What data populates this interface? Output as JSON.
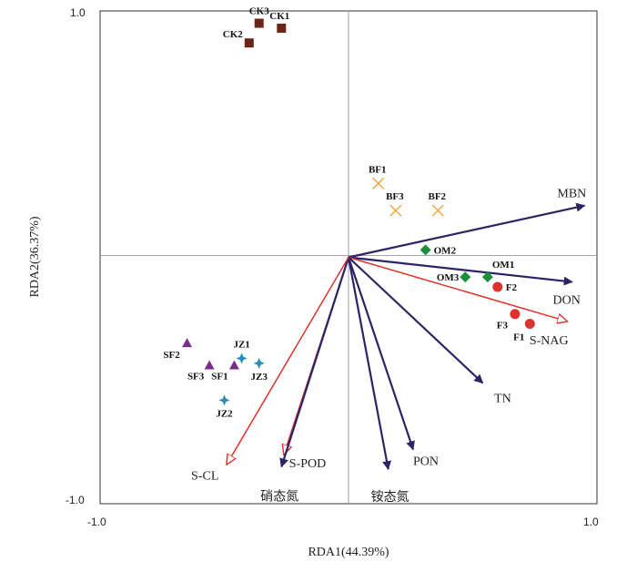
{
  "chart_data": {
    "type": "scatter",
    "xlabel": "RDA1(44.39%)",
    "ylabel": "RDA2(36.37%)",
    "xlim": [
      -1.0,
      1.0
    ],
    "ylim": [
      -1.0,
      1.0
    ],
    "x_ticks": [
      "-1.0",
      "1.0"
    ],
    "y_ticks": [
      "1.0",
      "-1.0"
    ],
    "reference_lines": "x=0, y=0",
    "colors": {
      "arrow_dark": "#2d2466",
      "arrow_red": "#e0322c",
      "CK": "#6b2418",
      "BF": "#f2a33a",
      "OM": "#1a8f3c",
      "F": "#e0322c",
      "SF": "#7b2d8e",
      "JZ": "#2a8fb8"
    },
    "vectors": [
      {
        "label": "MBN",
        "x": 0.95,
        "y": 0.21,
        "color": "dark"
      },
      {
        "label": "DON",
        "x": 0.9,
        "y": -0.1,
        "color": "dark"
      },
      {
        "label": "S-NAG",
        "x": 0.88,
        "y": -0.26,
        "color": "red"
      },
      {
        "label": "TN",
        "x": 0.54,
        "y": -0.51,
        "color": "dark"
      },
      {
        "label": "PON",
        "x": 0.26,
        "y": -0.78,
        "color": "dark"
      },
      {
        "label": "铵态氮",
        "x": 0.16,
        "y": -0.86,
        "color": "dark"
      },
      {
        "label": "S-POD",
        "x": -0.26,
        "y": -0.8,
        "color": "red"
      },
      {
        "label": "硝态氮",
        "x": -0.27,
        "y": -0.85,
        "color": "dark"
      },
      {
        "label": "S-CL",
        "x": -0.49,
        "y": -0.84,
        "color": "red"
      }
    ],
    "samples": [
      {
        "label": "CK1",
        "group": "CK",
        "marker": "square",
        "x": -0.27,
        "y": 0.93
      },
      {
        "label": "CK2",
        "group": "CK",
        "marker": "square",
        "x": -0.4,
        "y": 0.87
      },
      {
        "label": "CK3",
        "group": "CK",
        "marker": "square",
        "x": -0.36,
        "y": 0.95
      },
      {
        "label": "BF1",
        "group": "BF",
        "marker": "cross",
        "x": 0.12,
        "y": 0.3
      },
      {
        "label": "BF2",
        "group": "BF",
        "marker": "cross",
        "x": 0.36,
        "y": 0.19
      },
      {
        "label": "BF3",
        "group": "BF",
        "marker": "cross",
        "x": 0.19,
        "y": 0.19
      },
      {
        "label": "OM1",
        "group": "OM",
        "marker": "diamond",
        "x": 0.56,
        "y": -0.08
      },
      {
        "label": "OM2",
        "group": "OM",
        "marker": "diamond",
        "x": 0.31,
        "y": 0.03
      },
      {
        "label": "OM3",
        "group": "OM",
        "marker": "diamond",
        "x": 0.47,
        "y": -0.08
      },
      {
        "label": "F1",
        "group": "F",
        "marker": "circle",
        "x": 0.73,
        "y": -0.27
      },
      {
        "label": "F2",
        "group": "F",
        "marker": "circle",
        "x": 0.6,
        "y": -0.12
      },
      {
        "label": "F3",
        "group": "F",
        "marker": "circle",
        "x": 0.67,
        "y": -0.23
      },
      {
        "label": "SF1",
        "group": "SF",
        "marker": "triangle",
        "x": -0.46,
        "y": -0.44
      },
      {
        "label": "SF2",
        "group": "SF",
        "marker": "triangle",
        "x": -0.65,
        "y": -0.35
      },
      {
        "label": "SF3",
        "group": "SF",
        "marker": "triangle",
        "x": -0.56,
        "y": -0.44
      },
      {
        "label": "JZ1",
        "group": "JZ",
        "marker": "star",
        "x": -0.43,
        "y": -0.41
      },
      {
        "label": "JZ2",
        "group": "JZ",
        "marker": "star",
        "x": -0.5,
        "y": -0.58
      },
      {
        "label": "JZ3",
        "group": "JZ",
        "marker": "star",
        "x": -0.36,
        "y": -0.43
      }
    ]
  }
}
